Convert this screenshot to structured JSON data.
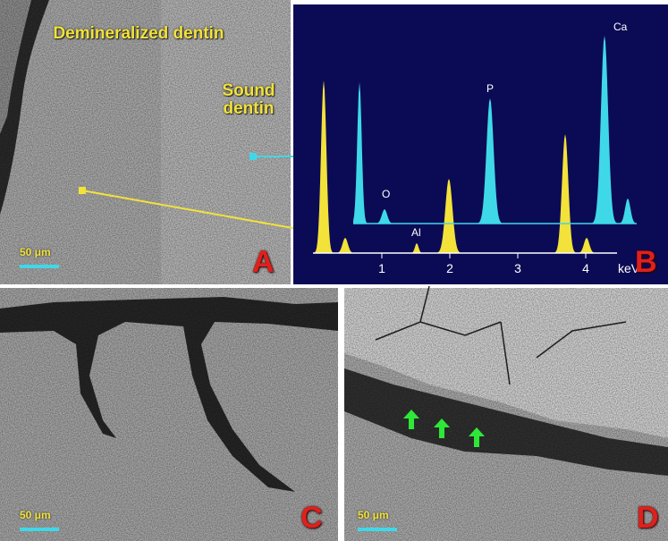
{
  "panels": [
    {
      "label": "A",
      "annotations": [
        "Demineralized dentin",
        "Sound dentin"
      ],
      "scale_bar": "50 μm"
    },
    {
      "label": "B",
      "elements": [
        "O",
        "Al",
        "P",
        "Ca"
      ],
      "x_ticks": [
        1,
        2,
        3,
        4
      ],
      "x_unit": "keV"
    },
    {
      "label": "C",
      "scale_bar": "50 μm"
    },
    {
      "label": "D",
      "scale_bar": "50 μm"
    }
  ]
}
